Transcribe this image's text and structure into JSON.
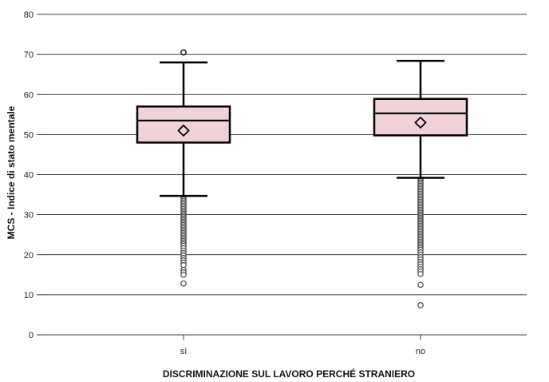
{
  "chart_data": {
    "type": "box",
    "title": "",
    "xlabel": "DISCRIMINAZIONE SUL LAVORO PERCHÉ STRANIERO",
    "ylabel": "MCS - Indice di stato mentale",
    "ylim": [
      0,
      80
    ],
    "yticks": [
      0,
      10,
      20,
      30,
      40,
      50,
      60,
      70,
      80
    ],
    "grid": true,
    "categories": [
      "sì",
      "no"
    ],
    "boxes": [
      {
        "category": "sì",
        "whisker_low": 34.7,
        "q1": 48.0,
        "median": 53.5,
        "q3": 57.0,
        "whisker_high": 68.0,
        "mean": 51.0,
        "outliers_high": [
          70.5
        ],
        "outliers_low": [
          34.2,
          33.8,
          33.4,
          33.0,
          32.6,
          32.2,
          31.8,
          31.4,
          31.0,
          30.6,
          30.2,
          29.8,
          29.4,
          29.0,
          28.6,
          28.2,
          27.8,
          27.4,
          27.0,
          26.6,
          26.2,
          25.8,
          25.4,
          25.0,
          24.6,
          24.2,
          23.8,
          23.4,
          23.0,
          22.6,
          22.2,
          21.6,
          21.0,
          20.4,
          19.8,
          19.2,
          18.6,
          18.0,
          17.4,
          16.2,
          15.6,
          15.0,
          12.8
        ]
      },
      {
        "category": "no",
        "whisker_low": 39.2,
        "q1": 49.8,
        "median": 55.3,
        "q3": 58.9,
        "whisker_high": 68.4,
        "mean": 53.0,
        "outliers_high": [],
        "outliers_low": [
          38.8,
          38.4,
          38.0,
          37.6,
          37.2,
          36.8,
          36.4,
          36.0,
          35.6,
          35.2,
          34.8,
          34.4,
          34.0,
          33.6,
          33.2,
          32.8,
          32.4,
          32.0,
          31.6,
          31.2,
          30.8,
          30.4,
          30.0,
          29.6,
          29.2,
          28.8,
          28.4,
          28.0,
          27.6,
          27.2,
          26.8,
          26.4,
          26.0,
          25.6,
          25.2,
          24.8,
          24.4,
          24.0,
          23.6,
          23.2,
          22.8,
          22.4,
          22.0,
          21.6,
          21.2,
          20.6,
          20.0,
          19.4,
          18.8,
          18.2,
          17.6,
          17.0,
          16.4,
          15.8,
          15.2,
          12.5,
          7.4
        ]
      }
    ],
    "colors": {
      "box_fill": "#f2d2d9",
      "box_stroke": "#000000",
      "outlier_stroke": "#555555",
      "grid": "#000000"
    }
  }
}
